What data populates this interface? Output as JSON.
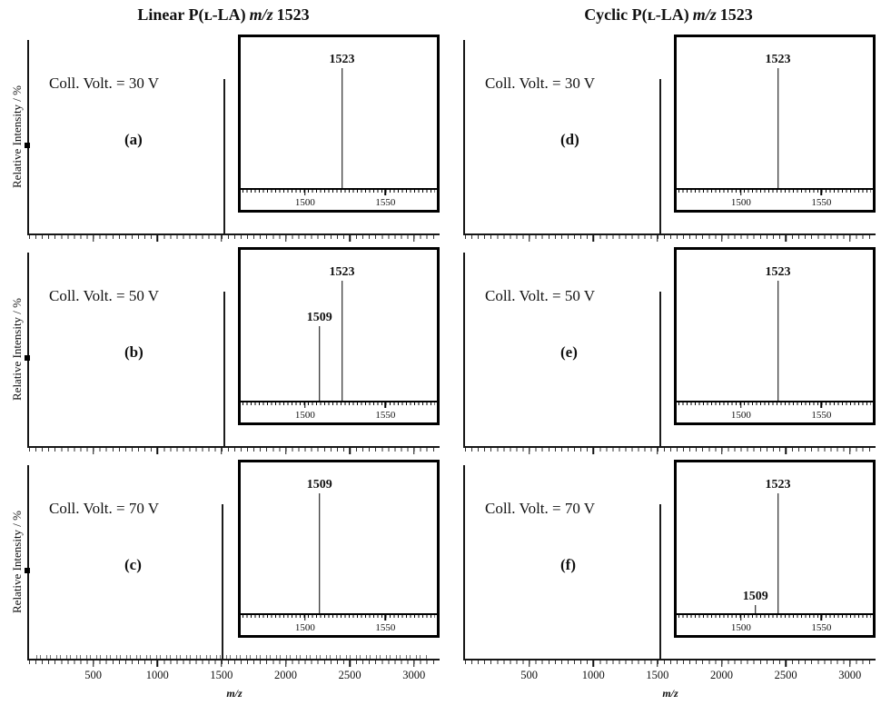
{
  "figure": {
    "left_title": {
      "sample": "Linear P(ʟ-LA)",
      "mz_symbol": "m/z",
      "mz_value": "1523"
    },
    "right_title": {
      "sample": "Cyclic P(ʟ-LA)",
      "mz_symbol": "m/z",
      "mz_value": "1523"
    },
    "y_axis_label": "Relative Intensity / %",
    "x_axis_label": "m/z",
    "x_ticks": [
      500,
      1000,
      1500,
      2000,
      2500,
      3000
    ],
    "x_max": 3200
  },
  "panels": [
    {
      "letter": "(a)",
      "coll_volt": "Coll. Volt. = 30 V",
      "col": "left",
      "row": 0,
      "show_ylabel": true,
      "axis_mark": true,
      "baseline_noise": false,
      "main_peak": {
        "mz": 1523,
        "rel": 0.8
      },
      "inset": {
        "xmin": 1460,
        "xmax": 1582,
        "ticks": [
          1500,
          1550
        ],
        "peaks": [
          {
            "mz": 1523,
            "label": "1523",
            "rel": 1.0
          }
        ]
      }
    },
    {
      "letter": "(d)",
      "coll_volt": "Coll. Volt. = 30 V",
      "col": "right",
      "row": 0,
      "show_ylabel": false,
      "axis_mark": false,
      "baseline_noise": false,
      "main_peak": {
        "mz": 1523,
        "rel": 0.8
      },
      "inset": {
        "xmin": 1460,
        "xmax": 1582,
        "ticks": [
          1500,
          1550
        ],
        "peaks": [
          {
            "mz": 1523,
            "label": "1523",
            "rel": 1.0
          }
        ]
      }
    },
    {
      "letter": "(b)",
      "coll_volt": "Coll. Volt. = 50 V",
      "col": "left",
      "row": 1,
      "show_ylabel": true,
      "axis_mark": true,
      "baseline_noise": false,
      "main_peak": {
        "mz": 1523,
        "rel": 0.8
      },
      "inset": {
        "xmin": 1460,
        "xmax": 1582,
        "ticks": [
          1500,
          1550
        ],
        "peaks": [
          {
            "mz": 1509,
            "label": "1509",
            "rel": 0.62
          },
          {
            "mz": 1523,
            "label": "1523",
            "rel": 1.0
          }
        ]
      }
    },
    {
      "letter": "(e)",
      "coll_volt": "Coll. Volt. = 50 V",
      "col": "right",
      "row": 1,
      "show_ylabel": false,
      "axis_mark": false,
      "baseline_noise": false,
      "main_peak": {
        "mz": 1523,
        "rel": 0.8
      },
      "inset": {
        "xmin": 1460,
        "xmax": 1582,
        "ticks": [
          1500,
          1550
        ],
        "peaks": [
          {
            "mz": 1523,
            "label": "1523",
            "rel": 1.0
          }
        ]
      }
    },
    {
      "letter": "(c)",
      "coll_volt": "Coll. Volt. = 70 V",
      "col": "left",
      "row": 2,
      "show_ylabel": true,
      "axis_mark": true,
      "baseline_noise": true,
      "main_peak": {
        "mz": 1509,
        "rel": 0.8
      },
      "inset": {
        "xmin": 1460,
        "xmax": 1582,
        "ticks": [
          1500,
          1550
        ],
        "peaks": [
          {
            "mz": 1509,
            "label": "1509",
            "rel": 1.0
          }
        ]
      }
    },
    {
      "letter": "(f)",
      "coll_volt": "Coll. Volt. = 70 V",
      "col": "right",
      "row": 2,
      "show_ylabel": false,
      "axis_mark": false,
      "baseline_noise": false,
      "main_peak": {
        "mz": 1523,
        "rel": 0.8
      },
      "inset": {
        "xmin": 1460,
        "xmax": 1582,
        "ticks": [
          1500,
          1550
        ],
        "peaks": [
          {
            "mz": 1509,
            "label": "1509",
            "rel": 0.07
          },
          {
            "mz": 1523,
            "label": "1523",
            "rel": 1.0
          }
        ]
      }
    }
  ],
  "chart_data": [
    {
      "panel": "(a)",
      "sample": "Linear P(L-LA)",
      "collision_voltage": "30 V",
      "type": "bar",
      "title": "Linear P(L-LA) m/z 1523",
      "xlabel": "m/z",
      "ylabel": "Relative Intensity / %",
      "xlim": [
        0,
        3200
      ],
      "x_ticks": [
        500,
        1000,
        1500,
        2000,
        2500,
        3000
      ],
      "peaks": [
        {
          "mz": 1523,
          "relative_intensity": 100
        }
      ],
      "inset": {
        "xlim": [
          1460,
          1582
        ],
        "x_ticks": [
          1500,
          1550
        ],
        "peaks": [
          {
            "mz": 1523,
            "relative_intensity": 100
          }
        ]
      }
    },
    {
      "panel": "(b)",
      "sample": "Linear P(L-LA)",
      "collision_voltage": "50 V",
      "type": "bar",
      "title": "Linear P(L-LA) m/z 1523",
      "xlabel": "m/z",
      "ylabel": "Relative Intensity / %",
      "xlim": [
        0,
        3200
      ],
      "x_ticks": [
        500,
        1000,
        1500,
        2000,
        2500,
        3000
      ],
      "peaks": [
        {
          "mz": 1509,
          "relative_intensity": 62
        },
        {
          "mz": 1523,
          "relative_intensity": 100
        }
      ],
      "inset": {
        "xlim": [
          1460,
          1582
        ],
        "x_ticks": [
          1500,
          1550
        ],
        "peaks": [
          {
            "mz": 1509,
            "relative_intensity": 62
          },
          {
            "mz": 1523,
            "relative_intensity": 100
          }
        ]
      }
    },
    {
      "panel": "(c)",
      "sample": "Linear P(L-LA)",
      "collision_voltage": "70 V",
      "type": "bar",
      "title": "Linear P(L-LA) m/z 1523",
      "xlabel": "m/z",
      "ylabel": "Relative Intensity / %",
      "xlim": [
        0,
        3200
      ],
      "x_ticks": [
        500,
        1000,
        1500,
        2000,
        2500,
        3000
      ],
      "peaks": [
        {
          "mz": 1509,
          "relative_intensity": 100
        }
      ],
      "inset": {
        "xlim": [
          1460,
          1582
        ],
        "x_ticks": [
          1500,
          1550
        ],
        "peaks": [
          {
            "mz": 1509,
            "relative_intensity": 100
          }
        ]
      }
    },
    {
      "panel": "(d)",
      "sample": "Cyclic P(L-LA)",
      "collision_voltage": "30 V",
      "type": "bar",
      "title": "Cyclic P(L-LA) m/z 1523",
      "xlabel": "m/z",
      "ylabel": "Relative Intensity / %",
      "xlim": [
        0,
        3200
      ],
      "x_ticks": [
        500,
        1000,
        1500,
        2000,
        2500,
        3000
      ],
      "peaks": [
        {
          "mz": 1523,
          "relative_intensity": 100
        }
      ],
      "inset": {
        "xlim": [
          1460,
          1582
        ],
        "x_ticks": [
          1500,
          1550
        ],
        "peaks": [
          {
            "mz": 1523,
            "relative_intensity": 100
          }
        ]
      }
    },
    {
      "panel": "(e)",
      "sample": "Cyclic P(L-LA)",
      "collision_voltage": "50 V",
      "type": "bar",
      "title": "Cyclic P(L-LA) m/z 1523",
      "xlabel": "m/z",
      "ylabel": "Relative Intensity / %",
      "xlim": [
        0,
        3200
      ],
      "x_ticks": [
        500,
        1000,
        1500,
        2000,
        2500,
        3000
      ],
      "peaks": [
        {
          "mz": 1523,
          "relative_intensity": 100
        }
      ],
      "inset": {
        "xlim": [
          1460,
          1582
        ],
        "x_ticks": [
          1500,
          1550
        ],
        "peaks": [
          {
            "mz": 1523,
            "relative_intensity": 100
          }
        ]
      }
    },
    {
      "panel": "(f)",
      "sample": "Cyclic P(L-LA)",
      "collision_voltage": "70 V",
      "type": "bar",
      "title": "Cyclic P(L-LA) m/z 1523",
      "xlabel": "m/z",
      "ylabel": "Relative Intensity / %",
      "xlim": [
        0,
        3200
      ],
      "x_ticks": [
        500,
        1000,
        1500,
        2000,
        2500,
        3000
      ],
      "peaks": [
        {
          "mz": 1509,
          "relative_intensity": 7
        },
        {
          "mz": 1523,
          "relative_intensity": 100
        }
      ],
      "inset": {
        "xlim": [
          1460,
          1582
        ],
        "x_ticks": [
          1500,
          1550
        ],
        "peaks": [
          {
            "mz": 1509,
            "relative_intensity": 7
          },
          {
            "mz": 1523,
            "relative_intensity": 100
          }
        ]
      }
    }
  ]
}
